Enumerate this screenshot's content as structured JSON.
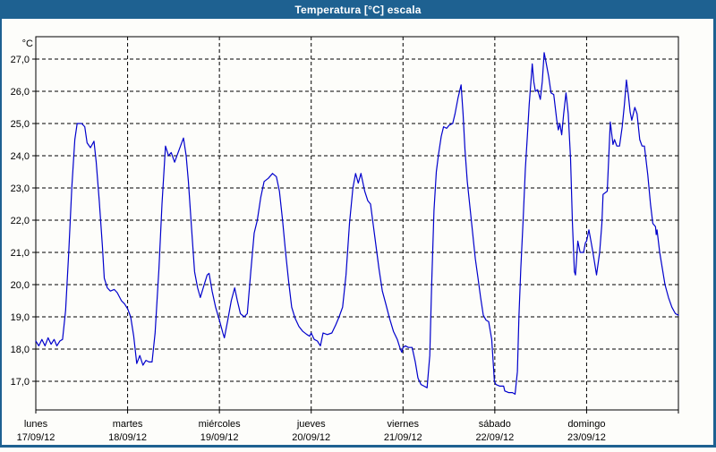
{
  "window": {
    "title": "Temperatura [°C] escala"
  },
  "colors": {
    "title_bar": "#1e6191",
    "frame": "#1e6191",
    "line": "#0000cc",
    "grid": "#000000",
    "text": "#000000",
    "background": "#fdfdfa"
  },
  "chart_data": {
    "type": "line",
    "title": "Temperatura [°C] escala",
    "unit_label": "°C",
    "xlabel": "",
    "ylabel": "°C",
    "grid": true,
    "legend_position": "none",
    "ylim": [
      16.1,
      27.7
    ],
    "yticks": [
      27,
      26,
      25,
      24,
      23,
      22,
      21,
      20,
      19,
      18,
      17
    ],
    "ytick_labels": [
      "27,0",
      "26,0",
      "25,0",
      "24,0",
      "23,0",
      "22,0",
      "21,0",
      "20,0",
      "19,0",
      "18,0",
      "17,0"
    ],
    "x_range_hours": [
      0,
      168
    ],
    "x_days": [
      {
        "name": "lunes",
        "date": "17/09/12"
      },
      {
        "name": "martes",
        "date": "18/09/12"
      },
      {
        "name": "miércoles",
        "date": "19/09/12"
      },
      {
        "name": "jueves",
        "date": "20/09/12"
      },
      {
        "name": "viernes",
        "date": "21/09/12"
      },
      {
        "name": "sábado",
        "date": "22/09/12"
      },
      {
        "name": "domingo",
        "date": "23/09/12"
      }
    ],
    "series": [
      {
        "name": "Temperatura",
        "color": "#0000cc",
        "points": [
          [
            0,
            18.25
          ],
          [
            0.8,
            18.1
          ],
          [
            1.6,
            18.3
          ],
          [
            2.4,
            18.1
          ],
          [
            3.2,
            18.35
          ],
          [
            4,
            18.15
          ],
          [
            4.8,
            18.3
          ],
          [
            5.5,
            18.1
          ],
          [
            6.3,
            18.25
          ],
          [
            7,
            18.3
          ],
          [
            7.8,
            19.2
          ],
          [
            8.6,
            21.0
          ],
          [
            9.4,
            23.0
          ],
          [
            10.2,
            24.5
          ],
          [
            10.8,
            25.0
          ],
          [
            12,
            25.0
          ],
          [
            12.8,
            24.9
          ],
          [
            13.4,
            24.4
          ],
          [
            14.3,
            24.25
          ],
          [
            15.2,
            24.45
          ],
          [
            15.8,
            23.8
          ],
          [
            16.6,
            22.6
          ],
          [
            17.4,
            21.2
          ],
          [
            17.9,
            20.2
          ],
          [
            18.7,
            19.9
          ],
          [
            19.5,
            19.8
          ],
          [
            20.5,
            19.85
          ],
          [
            21.3,
            19.75
          ],
          [
            22.4,
            19.5
          ],
          [
            23.2,
            19.4
          ],
          [
            24,
            19.25
          ],
          [
            24.8,
            19.0
          ],
          [
            25.6,
            18.4
          ],
          [
            26.4,
            17.55
          ],
          [
            27.2,
            17.8
          ],
          [
            28,
            17.5
          ],
          [
            28.8,
            17.65
          ],
          [
            29.6,
            17.6
          ],
          [
            30.4,
            17.6
          ],
          [
            31.2,
            18.5
          ],
          [
            32.2,
            20.5
          ],
          [
            33,
            22.5
          ],
          [
            33.9,
            24.3
          ],
          [
            34.7,
            24.0
          ],
          [
            35.4,
            24.1
          ],
          [
            36.3,
            23.8
          ],
          [
            37.2,
            24.1
          ],
          [
            38.6,
            24.55
          ],
          [
            39.3,
            24.0
          ],
          [
            39.9,
            23.2
          ],
          [
            40.7,
            21.8
          ],
          [
            41.5,
            20.4
          ],
          [
            42.3,
            19.9
          ],
          [
            43,
            19.6
          ],
          [
            43.9,
            19.95
          ],
          [
            44.8,
            20.3
          ],
          [
            45.3,
            20.35
          ],
          [
            46.1,
            19.8
          ],
          [
            47,
            19.3
          ],
          [
            48,
            18.9
          ],
          [
            48.9,
            18.5
          ],
          [
            49.3,
            18.35
          ],
          [
            50.2,
            18.9
          ],
          [
            51.1,
            19.5
          ],
          [
            52,
            19.9
          ],
          [
            52.7,
            19.5
          ],
          [
            53.5,
            19.1
          ],
          [
            54.5,
            19.0
          ],
          [
            55.3,
            19.1
          ],
          [
            56.2,
            20.4
          ],
          [
            57.1,
            21.6
          ],
          [
            57.9,
            22.0
          ],
          [
            58.8,
            22.7
          ],
          [
            59.7,
            23.2
          ],
          [
            60.8,
            23.3
          ],
          [
            61.9,
            23.45
          ],
          [
            62.9,
            23.35
          ],
          [
            63.7,
            22.9
          ],
          [
            64.5,
            22.0
          ],
          [
            65.3,
            21.0
          ],
          [
            66.1,
            20.1
          ],
          [
            66.9,
            19.3
          ],
          [
            67.8,
            18.95
          ],
          [
            68.8,
            18.7
          ],
          [
            69.8,
            18.55
          ],
          [
            70.9,
            18.45
          ],
          [
            71.6,
            18.4
          ],
          [
            72,
            18.5
          ],
          [
            72.8,
            18.3
          ],
          [
            73.6,
            18.25
          ],
          [
            74.4,
            18.1
          ],
          [
            75.1,
            18.5
          ],
          [
            76.2,
            18.45
          ],
          [
            77.4,
            18.5
          ],
          [
            78.4,
            18.75
          ],
          [
            79.3,
            19.0
          ],
          [
            80.2,
            19.3
          ],
          [
            81.1,
            20.3
          ],
          [
            82,
            21.9
          ],
          [
            82.9,
            23.0
          ],
          [
            83.6,
            23.45
          ],
          [
            84.3,
            23.15
          ],
          [
            85,
            23.45
          ],
          [
            86,
            22.9
          ],
          [
            86.8,
            22.6
          ],
          [
            87.5,
            22.5
          ],
          [
            88.6,
            21.5
          ],
          [
            89.7,
            20.5
          ],
          [
            90.6,
            19.8
          ],
          [
            91.4,
            19.45
          ],
          [
            92.5,
            18.95
          ],
          [
            93.5,
            18.55
          ],
          [
            94.5,
            18.3
          ],
          [
            95.3,
            18.0
          ],
          [
            95.7,
            17.9
          ],
          [
            96,
            18.05
          ],
          [
            96.6,
            18.1
          ],
          [
            97.4,
            18.05
          ],
          [
            98.4,
            18.05
          ],
          [
            99.2,
            17.6
          ],
          [
            99.9,
            17.1
          ],
          [
            100.7,
            16.9
          ],
          [
            101.5,
            16.85
          ],
          [
            102.3,
            16.8
          ],
          [
            103,
            17.8
          ],
          [
            103.5,
            20.0
          ],
          [
            104.1,
            22.3
          ],
          [
            104.7,
            23.5
          ],
          [
            105.3,
            24.05
          ],
          [
            106,
            24.6
          ],
          [
            106.6,
            24.9
          ],
          [
            107.4,
            24.85
          ],
          [
            108.1,
            24.95
          ],
          [
            109,
            25.0
          ],
          [
            109.6,
            25.3
          ],
          [
            110.4,
            25.8
          ],
          [
            111.2,
            26.2
          ],
          [
            111.7,
            25.3
          ],
          [
            112.2,
            24.2
          ],
          [
            112.8,
            23.2
          ],
          [
            113.5,
            22.4
          ],
          [
            114.2,
            21.6
          ],
          [
            114.9,
            20.8
          ],
          [
            115.6,
            20.2
          ],
          [
            116.3,
            19.6
          ],
          [
            117,
            19.05
          ],
          [
            117.7,
            18.9
          ],
          [
            118.4,
            18.85
          ],
          [
            119.2,
            18.3
          ],
          [
            119.9,
            17.0
          ],
          [
            120.3,
            16.9
          ],
          [
            121.3,
            16.85
          ],
          [
            122.3,
            16.85
          ],
          [
            122.6,
            16.7
          ],
          [
            123.6,
            16.65
          ],
          [
            124.6,
            16.65
          ],
          [
            125.3,
            16.6
          ],
          [
            125.9,
            17.3
          ],
          [
            126.3,
            19.0
          ],
          [
            126.8,
            20.5
          ],
          [
            127.4,
            22.0
          ],
          [
            128,
            23.6
          ],
          [
            128.5,
            24.6
          ],
          [
            129,
            25.6
          ],
          [
            129.5,
            26.4
          ],
          [
            129.8,
            26.85
          ],
          [
            130.2,
            26.3
          ],
          [
            130.6,
            26.0
          ],
          [
            131.2,
            26.05
          ],
          [
            131.9,
            25.75
          ],
          [
            132.4,
            26.3
          ],
          [
            132.9,
            27.2
          ],
          [
            133.4,
            26.9
          ],
          [
            134.1,
            26.45
          ],
          [
            134.7,
            25.95
          ],
          [
            135.4,
            25.9
          ],
          [
            136.2,
            25.1
          ],
          [
            136.6,
            24.8
          ],
          [
            137,
            25.0
          ],
          [
            137.5,
            24.65
          ],
          [
            138,
            25.3
          ],
          [
            138.6,
            25.95
          ],
          [
            139.2,
            25.3
          ],
          [
            139.8,
            23.9
          ],
          [
            140.3,
            21.9
          ],
          [
            140.8,
            20.4
          ],
          [
            141.1,
            20.3
          ],
          [
            141.7,
            21.35
          ],
          [
            142.3,
            21.0
          ],
          [
            143.2,
            21.0
          ],
          [
            143.7,
            21.3
          ],
          [
            144,
            21.35
          ],
          [
            144.6,
            21.7
          ],
          [
            145.2,
            21.3
          ],
          [
            145.8,
            20.9
          ],
          [
            146.6,
            20.3
          ],
          [
            147.4,
            21.0
          ],
          [
            148,
            21.9
          ],
          [
            148.3,
            22.8
          ],
          [
            149.4,
            22.9
          ],
          [
            150.2,
            25.05
          ],
          [
            150.9,
            24.35
          ],
          [
            151.3,
            24.5
          ],
          [
            151.9,
            24.3
          ],
          [
            152.6,
            24.3
          ],
          [
            153.3,
            24.9
          ],
          [
            153.9,
            25.6
          ],
          [
            154.4,
            26.35
          ],
          [
            154.9,
            25.9
          ],
          [
            155.4,
            25.35
          ],
          [
            155.8,
            25.1
          ],
          [
            156.6,
            25.5
          ],
          [
            157.2,
            25.3
          ],
          [
            157.9,
            24.5
          ],
          [
            158.5,
            24.3
          ],
          [
            159.1,
            24.3
          ],
          [
            160,
            23.4
          ],
          [
            160.7,
            22.5
          ],
          [
            161.3,
            21.9
          ],
          [
            162,
            21.8
          ],
          [
            162.2,
            21.55
          ],
          [
            162.4,
            21.7
          ],
          [
            163.1,
            21.0
          ],
          [
            164.5,
            20.0
          ],
          [
            165.4,
            19.6
          ],
          [
            166.3,
            19.3
          ],
          [
            167.2,
            19.1
          ],
          [
            168,
            19.05
          ]
        ]
      }
    ]
  }
}
